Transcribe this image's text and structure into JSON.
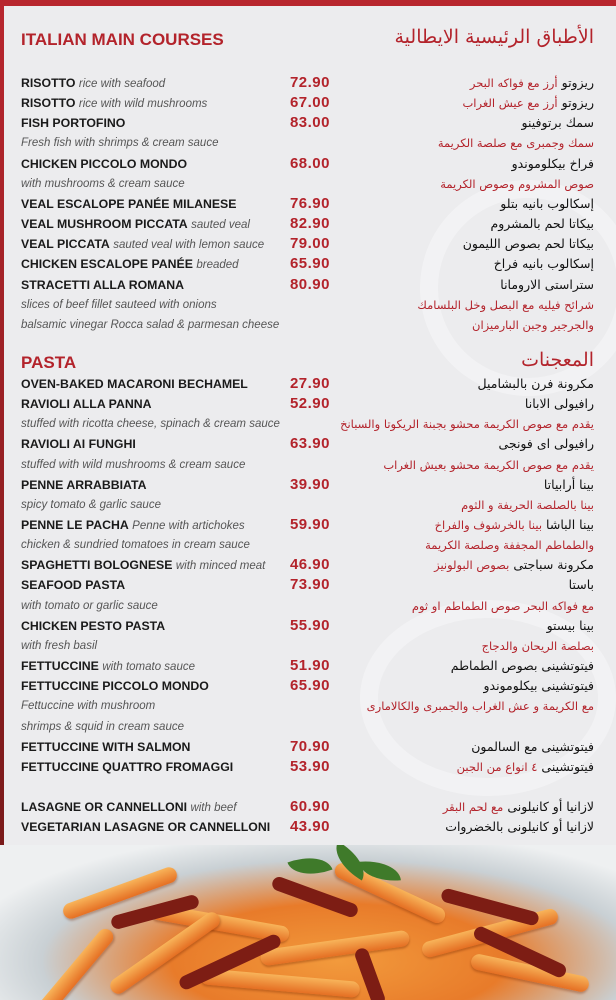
{
  "sections": [
    {
      "title": "ITALIAN MAIN COURSES",
      "title_ar": "الأطباق الرئيسية الايطالية",
      "lines": [
        {
          "type": "item",
          "name": "RISOTTO",
          "desc": "rice with seafood",
          "price": "72.90",
          "ar_name": "ريزوتو",
          "ar_desc": "أرز مع فواكه البحر"
        },
        {
          "type": "item",
          "name": "RISOTTO",
          "desc": "rice with wild mushrooms",
          "price": "67.00",
          "ar_name": "ريزوتو",
          "ar_desc": "أرز مع عيش الغراب"
        },
        {
          "type": "item",
          "name": "FISH PORTOFINO",
          "desc": "",
          "price": "83.00",
          "ar_name": "سمك برتوفينو",
          "ar_desc": ""
        },
        {
          "type": "note",
          "en": "Fresh fish with shrimps & cream sauce",
          "ar": "سمك وجمبرى مع صلصة الكريمة"
        },
        {
          "type": "item",
          "name": "CHICKEN PICCOLO MONDO",
          "desc": "",
          "price": "68.00",
          "ar_name": "فراخ بيكلوموندو",
          "ar_desc": ""
        },
        {
          "type": "note",
          "en": "with mushrooms & cream sauce",
          "ar": "صوص المشروم وصوص الكريمة"
        },
        {
          "type": "item",
          "name": "VEAL ESCALOPE PANÉE MILANESE",
          "desc": "",
          "price": "76.90",
          "ar_name": "إسكالوب بانيه بتلو",
          "ar_desc": ""
        },
        {
          "type": "item",
          "name": "VEAL MUSHROOM PICCATA",
          "desc": "sauted veal",
          "price": "82.90",
          "ar_name": "بيكاتا لحم بالمشروم",
          "ar_desc": ""
        },
        {
          "type": "item",
          "name": "VEAL PICCATA",
          "desc": "sauted veal with lemon sauce",
          "price": "79.00",
          "ar_name": "بيكاتا لحم بصوص الليمون",
          "ar_desc": ""
        },
        {
          "type": "item",
          "name": "CHICKEN ESCALOPE PANÉE",
          "desc": "breaded",
          "price": "65.90",
          "ar_name": "إسكالوب بانيه فراخ",
          "ar_desc": ""
        },
        {
          "type": "item",
          "name": "STRACETTI ALLA ROMANA",
          "desc": "",
          "price": "80.90",
          "ar_name": "ستراستى الارومانا",
          "ar_desc": ""
        },
        {
          "type": "note",
          "en": "slices of beef fillet sauteed with onions",
          "ar": "شرائح فيليه مع البصل وخل البلسامك"
        },
        {
          "type": "note",
          "en": "balsamic vinegar Rocca salad & parmesan cheese",
          "ar": "والجرجير وجبن البارميزان"
        }
      ]
    },
    {
      "title": "PASTA",
      "title_ar": "المعجنات",
      "lines": [
        {
          "type": "item",
          "name": "OVEN-BAKED MACARONI BECHAMEL",
          "desc": "",
          "price": "27.90",
          "ar_name": "مكرونة فرن بالبشاميل",
          "ar_desc": ""
        },
        {
          "type": "item",
          "name": "RAVIOLI ALLA PANNA",
          "desc": "",
          "price": "52.90",
          "ar_name": "رافيولى الابانا",
          "ar_desc": ""
        },
        {
          "type": "note",
          "en": "stuffed with ricotta cheese, spinach & cream sauce",
          "ar": "يقدم مع صوص الكريمة محشو بجبنة الريكوتا والسبانخ"
        },
        {
          "type": "item",
          "name": "RAVIOLI AI FUNGHI",
          "desc": "",
          "price": "63.90",
          "ar_name": "رافيولى اى فونجى",
          "ar_desc": ""
        },
        {
          "type": "note",
          "en": "stuffed with wild mushrooms & cream sauce",
          "ar": "يقدم مع صوص الكريمة محشو بعيش الغراب"
        },
        {
          "type": "item",
          "name": "PENNE ARRABBIATA",
          "desc": "",
          "price": "39.90",
          "ar_name": "بينا أرابياتا",
          "ar_desc": ""
        },
        {
          "type": "note",
          "en": "spicy tomato & garlic sauce",
          "ar": "بينا بالصلصة الحريفة و الثوم"
        },
        {
          "type": "item",
          "name": "PENNE LE PACHA",
          "desc": "Penne with artichokes",
          "price": "59.90",
          "ar_name": "بينا الباشا",
          "ar_desc": "بينا بالخرشوف والفراخ"
        },
        {
          "type": "note",
          "en": "chicken & sundried tomatoes in cream sauce",
          "ar": "والطماطم المجففة وصلصة الكريمة"
        },
        {
          "type": "item",
          "name": "SPAGHETTI BOLOGNESE",
          "desc": "with minced meat",
          "price": "46.90",
          "ar_name": "مكرونة سباجتى",
          "ar_desc": "بصوص البولونيز"
        },
        {
          "type": "item",
          "name": "SEAFOOD PASTA",
          "desc": "",
          "price": "73.90",
          "ar_name": "باستا",
          "ar_desc": ""
        },
        {
          "type": "note",
          "en": "with tomato or garlic sauce",
          "ar": "مع فواكه البحر  صوص الطماطم او ثوم"
        },
        {
          "type": "item",
          "name": "CHICKEN PESTO PASTA",
          "desc": "",
          "price": "55.90",
          "ar_name": "بينا بيستو",
          "ar_desc": ""
        },
        {
          "type": "note",
          "en": "with fresh basil",
          "ar": "بصلصة الريحان والدجاج"
        },
        {
          "type": "item",
          "name": "FETTUCCINE",
          "desc": "with tomato sauce",
          "price": "51.90",
          "ar_name": "فيتوتشينى بصوص الطماطم",
          "ar_desc": ""
        },
        {
          "type": "item",
          "name": "FETTUCCINE PICCOLO MONDO",
          "desc": "",
          "price": "65.90",
          "ar_name": "فيتوتشينى بيكلوموندو",
          "ar_desc": ""
        },
        {
          "type": "note",
          "en": "Fettuccine with mushroom",
          "ar": "مع الكريمة و عش الغراب والجمبرى والكالامارى"
        },
        {
          "type": "note",
          "en": " shrimps & squid in cream sauce",
          "ar": ""
        },
        {
          "type": "item",
          "name": "FETTUCCINE WITH SALMON",
          "desc": "",
          "price": "70.90",
          "ar_name": "فيتوتشينى مع السالمون",
          "ar_desc": ""
        },
        {
          "type": "item",
          "name": "FETTUCCINE QUATTRO FROMAGGI",
          "desc": "",
          "price": "53.90",
          "ar_name": "فيتوتشينى",
          "ar_desc": "٤ انواع من الجبن"
        },
        {
          "type": "item",
          "name": "LASAGNE OR CANNELLONI",
          "desc": "with beef",
          "price": "60.90",
          "ar_name": "لازانيا  أو كانيلونى",
          "ar_desc": "مع لحم البقر",
          "gap_before": true
        },
        {
          "type": "item",
          "name": "VEGETARIAN LASAGNE OR CANNELLONI",
          "desc": "",
          "price": "43.90",
          "ar_name": "لازانيا أو كانيلونى بالخضروات",
          "ar_desc": ""
        }
      ]
    }
  ],
  "colors": {
    "accent": "#b3232b",
    "background": "#ececee",
    "text": "#1a1a1a"
  }
}
